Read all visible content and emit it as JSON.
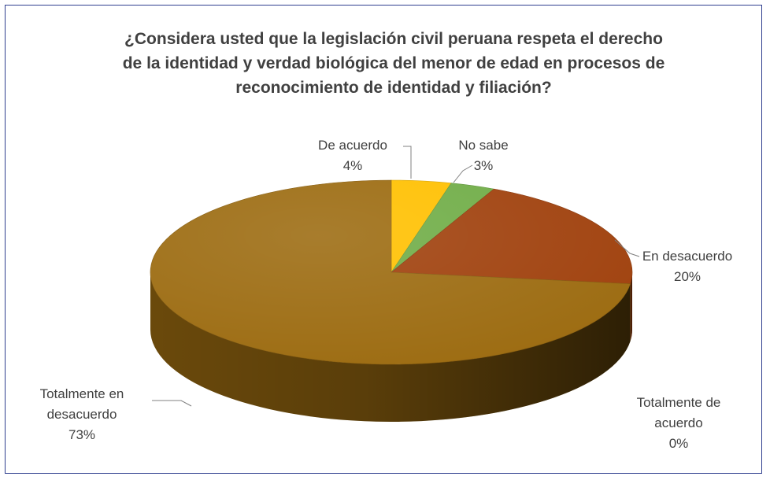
{
  "chart_data": {
    "type": "pie",
    "style": "3d",
    "title_lines": [
      "¿Considera usted que la legislación  civil peruana respeta el derecho",
      "de la identidad y verdad biológica  del menor de edad en procesos de",
      "reconocimiento de identidad y filiación?"
    ],
    "slices": [
      {
        "label_lines": [
          "De acuerdo"
        ],
        "percent_label": "4%",
        "value": 4,
        "color": "#FFC000"
      },
      {
        "label_lines": [
          "No sabe"
        ],
        "percent_label": "3%",
        "value": 3,
        "color": "#70AD47"
      },
      {
        "label_lines": [
          "En desacuerdo"
        ],
        "percent_label": "20%",
        "value": 20,
        "color": "#A0410D"
      },
      {
        "label_lines": [
          "Totalmente de",
          "acuerdo"
        ],
        "percent_label": "0%",
        "value": 0,
        "color": "#7F6000"
      },
      {
        "label_lines": [
          "Totalmente en",
          "desacuerdo"
        ],
        "percent_label": "73%",
        "value": 73,
        "color": "#9C6B10"
      }
    ],
    "legend": "none",
    "border_color": "#2F3F8F"
  }
}
